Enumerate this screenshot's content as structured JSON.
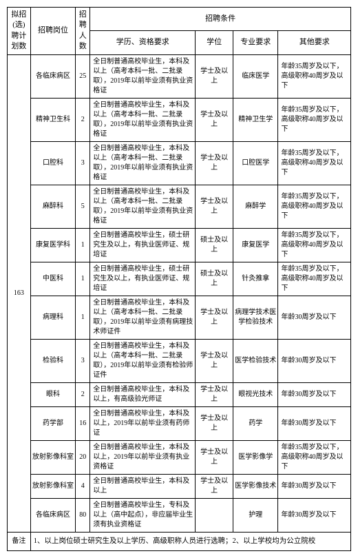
{
  "headers": {
    "plan": "拟招(选)聘计划数",
    "position": "招聘岗位",
    "count": "招聘人数",
    "conditions": "招聘条件",
    "education": "学历、资格要求",
    "degree": "学位",
    "major": "专业要求",
    "other": "其他要求"
  },
  "plan_total": "163",
  "rows": [
    {
      "position": "各临床病区",
      "count": "25",
      "education": "全日制普通高校毕业生，本科及以上（高考本科一批、二批录取），2019年以前毕业须有执业资格证",
      "degree": "学士及以上",
      "major": "临床医学",
      "other": "年龄35周岁及以下，高级职称40周岁及以下"
    },
    {
      "position": "精神卫生科",
      "count": "2",
      "education": "全日制普通高校毕业生，本科及以上（高考本科一批、二批录取），2019年以前毕业须有执业资格证",
      "degree": "学士及以上",
      "major": "精神卫生学",
      "other": "年龄35周岁及以下，高级职称40周岁及以下"
    },
    {
      "position": "口腔科",
      "count": "3",
      "education": "全日制普通高校毕业生，本科及以上（高考本科一批、二批录取），2019年以前毕业须有执业资格证",
      "degree": "学士及以上",
      "major": "口腔医学",
      "other": "年龄35周岁及以下，高级职称40周岁及以下"
    },
    {
      "position": "麻醉科",
      "count": "5",
      "education": "全日制普通高校毕业生，本科及以上（高考本科一批、二批录取），2019年以前毕业须有执业资格证",
      "degree": "学士及以上",
      "major": "麻醉学",
      "other": "年龄35周岁及以下，高级职称40周岁及以下"
    },
    {
      "position": "康复医学科",
      "count": "1",
      "education": "全日制普通高校毕业生，硕士研究生及以上，有执业医师证、规培证",
      "degree": "硕士及以上",
      "major": "康复医学",
      "other": "年龄35周岁及以下，高级职称40周岁及以下"
    },
    {
      "position": "中医科",
      "count": "1",
      "education": "全日制普通高校毕业生，硕士研究生及以上，有执业医师证、规培证",
      "degree": "硕士及以上",
      "major": "针灸推拿",
      "other": "年龄35周岁及以下，高级职称40周岁及以下"
    },
    {
      "position": "病理科",
      "count": "1",
      "education": "全日制普通高校毕业生，本科及以上（高考本科一批、二批录取），2019年以前毕业须有病理技术师证件",
      "degree": "学士及以上",
      "major": "病理学技术医学检验技术",
      "other": "年龄30周岁及以下"
    },
    {
      "position": "检验科",
      "count": "3",
      "education": "全日制普通高校毕业生，本科及以上（高考本科一批、二批录取），2019年以前毕业须有检验师证件",
      "degree": "学士及以上",
      "major": "医学检验技术",
      "other": "年龄30周岁及以下"
    },
    {
      "position": "眼科",
      "count": "2",
      "education": "全日制普通高校毕业生，本科及以上，有高级验光师证",
      "degree": "学士及以上",
      "major": "眼视光技术",
      "other": "年龄30周岁及以下"
    },
    {
      "position": "药学部",
      "count": "16",
      "education": "全日制普通高校毕业生，本科及以上，2019年以前毕业须有药师证",
      "degree": "学士及以上",
      "major": "药学",
      "other": "年龄30周岁及以下"
    },
    {
      "position": "放射影像科室",
      "count": "20",
      "education": "全日制普通高校毕业生，本科及以上，2019年以前毕业须有执业资格证",
      "degree": "学士及以上",
      "major": "医学影像学",
      "other": "年龄35周岁及以下，高级职称40周岁及以下"
    },
    {
      "position": "放射影像科室",
      "count": "4",
      "education": "全日制普通高校毕业生，本科及以上",
      "degree": "学士及以上",
      "major": "医学影像技术",
      "other": "年龄30周岁及以下"
    },
    {
      "position": "各临床病区",
      "count": "80",
      "education": "全日制普通高校毕业生，专科及以上（高中起点），非应届毕业生须有执业资格证",
      "degree": "",
      "major": "护理",
      "other": "年龄30周岁及以下"
    }
  ],
  "note": {
    "label": "备注",
    "content": "1、以上岗位硕士研究生及以上学历、高级职称人员进行选聘；2、以上学校均为公立院校"
  }
}
